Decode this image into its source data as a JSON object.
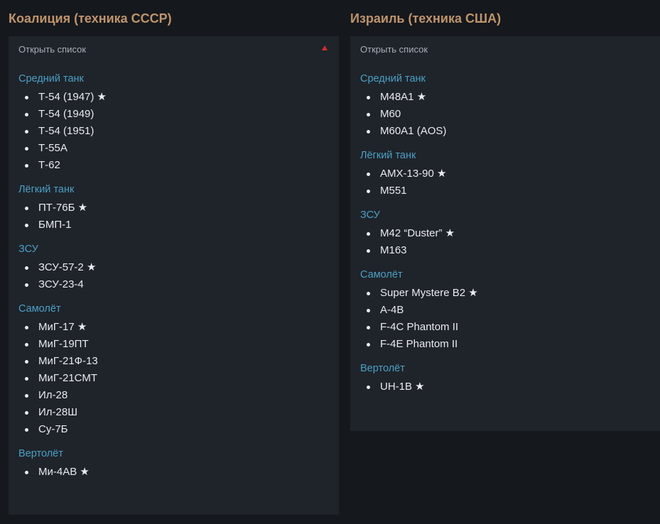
{
  "columns": [
    {
      "title": "Коалиция (техника СССР)",
      "toggle_label": "Открыть список",
      "groups": [
        {
          "title": "Средний танк",
          "items": [
            "Т-54 (1947) ★",
            "Т-54 (1949)",
            "Т-54 (1951)",
            "Т-55А",
            "Т-62"
          ]
        },
        {
          "title": "Лёгкий танк",
          "items": [
            "ПТ-76Б ★",
            "БМП-1"
          ]
        },
        {
          "title": "ЗСУ",
          "items": [
            "ЗСУ-57-2 ★",
            "ЗСУ-23-4"
          ]
        },
        {
          "title": "Самолёт",
          "items": [
            "МиГ-17 ★",
            "МиГ-19ПТ",
            "МиГ-21Ф-13",
            "МиГ-21СМТ",
            "Ил-28",
            "Ил-28Ш",
            "Су-7Б"
          ]
        },
        {
          "title": "Вертолёт",
          "items": [
            "Ми-4АВ ★"
          ]
        }
      ]
    },
    {
      "title": "Израиль (техника США)",
      "toggle_label": "Открыть список",
      "groups": [
        {
          "title": "Средний танк",
          "items": [
            "M48A1 ★",
            "M60",
            "M60A1 (AOS)"
          ]
        },
        {
          "title": "Лёгкий танк",
          "items": [
            "AMX-13-90 ★",
            "M551"
          ]
        },
        {
          "title": "ЗСУ",
          "items": [
            "M42 “Duster” ★",
            "M163"
          ]
        },
        {
          "title": "Самолёт",
          "items": [
            "Super Mystere B2 ★",
            "A-4B",
            "F-4C Phantom II",
            "F-4E Phantom II"
          ]
        },
        {
          "title": "Вертолёт",
          "items": [
            "UH-1B ★"
          ]
        }
      ]
    }
  ],
  "colors": {
    "background": "#15181d",
    "panel": "#1f232a",
    "column_title": "#bf946a",
    "group_title": "#4aa0c5",
    "item_text": "#e9ebee",
    "toggle_arrow": "#d02d2d"
  }
}
